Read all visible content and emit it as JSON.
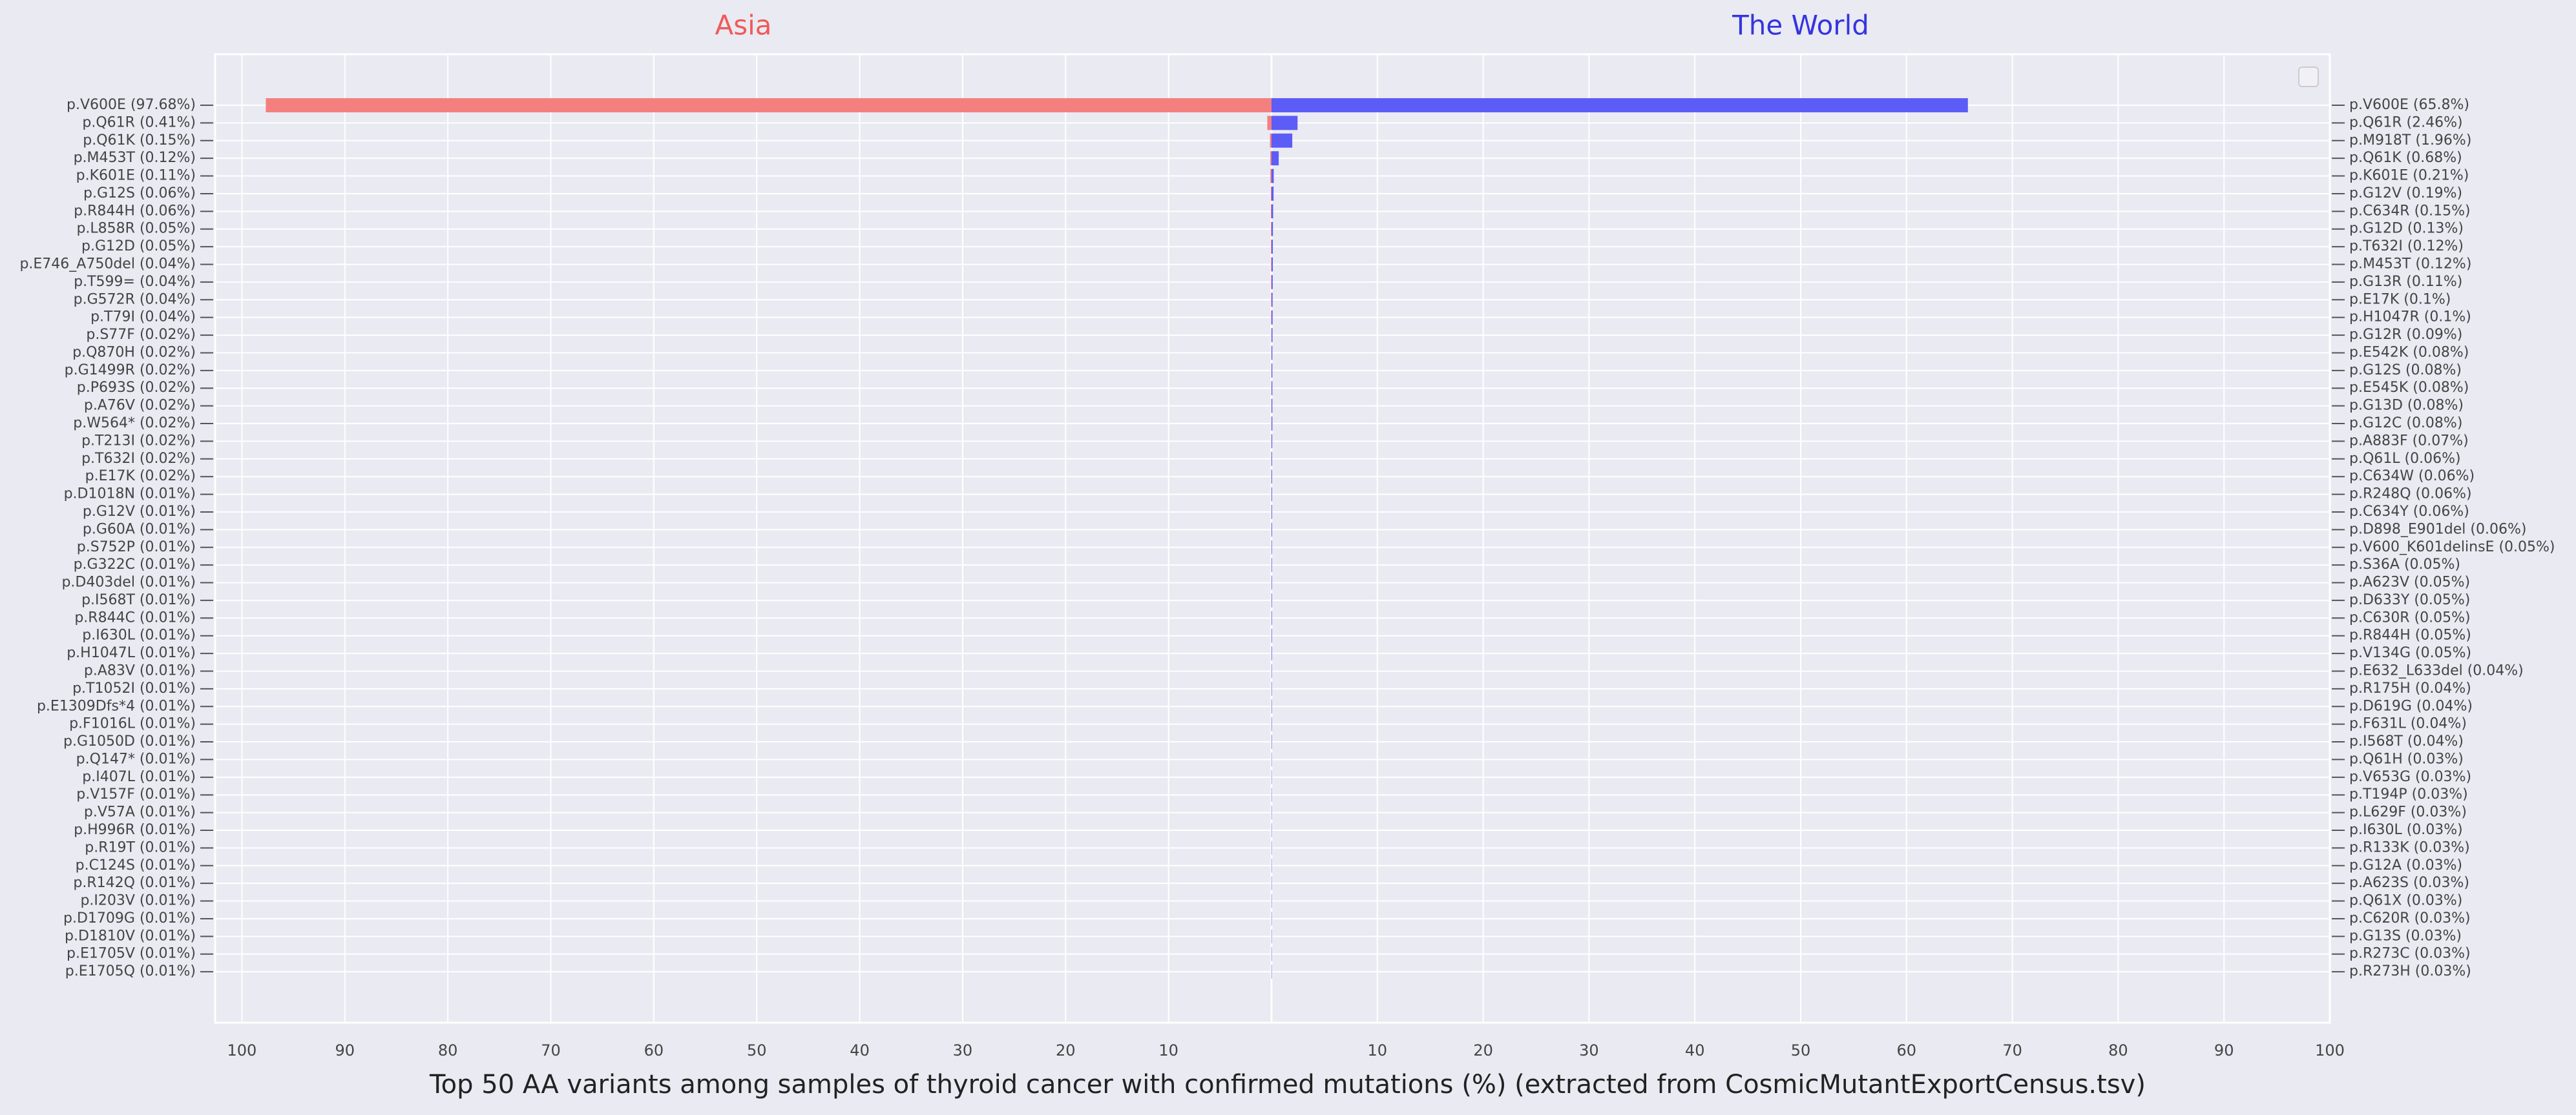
{
  "chart_data": {
    "type": "butterfly",
    "title": "Top 50 AA variants among samples of thyroid cancer with confirmed mutations (%) (extracted from CosmicMutantExportCensus.tsv)",
    "grid": true,
    "series": [
      {
        "name": "Asia",
        "color": "#f47f7f",
        "title_color": "#f05a5a",
        "side": "left",
        "xlim": [
          0,
          102.6
        ],
        "xticks": [
          10,
          20,
          30,
          40,
          50,
          60,
          70,
          80,
          90,
          100
        ],
        "categories": [
          "p.V600E (97.68%)",
          "p.Q61R (0.41%)",
          "p.Q61K (0.15%)",
          "p.M453T (0.12%)",
          "p.K601E (0.11%)",
          "p.G12S (0.06%)",
          "p.R844H (0.06%)",
          "p.L858R (0.05%)",
          "p.G12D (0.05%)",
          "p.E746_A750del (0.04%)",
          "p.T599= (0.04%)",
          "p.G572R (0.04%)",
          "p.T79I (0.04%)",
          "p.S77F (0.02%)",
          "p.Q870H (0.02%)",
          "p.G1499R (0.02%)",
          "p.P693S (0.02%)",
          "p.A76V (0.02%)",
          "p.W564* (0.02%)",
          "p.T213I (0.02%)",
          "p.T632I (0.02%)",
          "p.E17K (0.02%)",
          "p.D1018N (0.01%)",
          "p.G12V (0.01%)",
          "p.G60A (0.01%)",
          "p.S752P (0.01%)",
          "p.G322C (0.01%)",
          "p.D403del (0.01%)",
          "p.I568T (0.01%)",
          "p.R844C (0.01%)",
          "p.I630L (0.01%)",
          "p.H1047L (0.01%)",
          "p.A83V (0.01%)",
          "p.T1052I (0.01%)",
          "p.E1309Dfs*4 (0.01%)",
          "p.F1016L (0.01%)",
          "p.G1050D (0.01%)",
          "p.Q147* (0.01%)",
          "p.I407L (0.01%)",
          "p.V157F (0.01%)",
          "p.V57A (0.01%)",
          "p.H996R (0.01%)",
          "p.R19T (0.01%)",
          "p.C124S (0.01%)",
          "p.R142Q (0.01%)",
          "p.I203V (0.01%)",
          "p.D1709G (0.01%)",
          "p.D1810V (0.01%)",
          "p.E1705V (0.01%)",
          "p.E1705Q (0.01%)"
        ],
        "values": [
          97.68,
          0.41,
          0.15,
          0.12,
          0.11,
          0.06,
          0.06,
          0.05,
          0.05,
          0.04,
          0.04,
          0.04,
          0.04,
          0.02,
          0.02,
          0.02,
          0.02,
          0.02,
          0.02,
          0.02,
          0.02,
          0.02,
          0.01,
          0.01,
          0.01,
          0.01,
          0.01,
          0.01,
          0.01,
          0.01,
          0.01,
          0.01,
          0.01,
          0.01,
          0.01,
          0.01,
          0.01,
          0.01,
          0.01,
          0.01,
          0.01,
          0.01,
          0.01,
          0.01,
          0.01,
          0.01,
          0.01,
          0.01,
          0.01,
          0.01
        ]
      },
      {
        "name": "The World",
        "color": "#5c5cf7",
        "title_color": "#3434e0",
        "side": "right",
        "xlim": [
          0,
          100
        ],
        "xticks": [
          10,
          20,
          30,
          40,
          50,
          60,
          70,
          80,
          90,
          100
        ],
        "categories": [
          "p.V600E (65.8%)",
          "p.Q61R (2.46%)",
          "p.M918T (1.96%)",
          "p.Q61K (0.68%)",
          "p.K601E (0.21%)",
          "p.G12V (0.19%)",
          "p.C634R (0.15%)",
          "p.G12D (0.13%)",
          "p.T632I (0.12%)",
          "p.M453T (0.12%)",
          "p.G13R (0.11%)",
          "p.E17K (0.1%)",
          "p.H1047R (0.1%)",
          "p.G12R (0.09%)",
          "p.E542K (0.08%)",
          "p.G12S (0.08%)",
          "p.E545K (0.08%)",
          "p.G13D (0.08%)",
          "p.G12C (0.08%)",
          "p.A883F (0.07%)",
          "p.Q61L (0.06%)",
          "p.C634W (0.06%)",
          "p.R248Q (0.06%)",
          "p.C634Y (0.06%)",
          "p.D898_E901del (0.06%)",
          "p.V600_K601delinsE (0.05%)",
          "p.S36A (0.05%)",
          "p.A623V (0.05%)",
          "p.D633Y (0.05%)",
          "p.C630R (0.05%)",
          "p.R844H (0.05%)",
          "p.V134G (0.05%)",
          "p.E632_L633del (0.04%)",
          "p.R175H (0.04%)",
          "p.D619G (0.04%)",
          "p.F631L (0.04%)",
          "p.I568T (0.04%)",
          "p.Q61H (0.03%)",
          "p.V653G (0.03%)",
          "p.T194P (0.03%)",
          "p.L629F (0.03%)",
          "p.I630L (0.03%)",
          "p.R133K (0.03%)",
          "p.G12A (0.03%)",
          "p.A623S (0.03%)",
          "p.Q61X (0.03%)",
          "p.C620R (0.03%)",
          "p.G13S (0.03%)",
          "p.R273C (0.03%)",
          "p.R273H (0.03%)"
        ],
        "values": [
          65.8,
          2.46,
          1.96,
          0.68,
          0.21,
          0.19,
          0.15,
          0.13,
          0.12,
          0.12,
          0.11,
          0.1,
          0.1,
          0.09,
          0.08,
          0.08,
          0.08,
          0.08,
          0.08,
          0.07,
          0.06,
          0.06,
          0.06,
          0.06,
          0.06,
          0.05,
          0.05,
          0.05,
          0.05,
          0.05,
          0.05,
          0.05,
          0.04,
          0.04,
          0.04,
          0.04,
          0.04,
          0.03,
          0.03,
          0.03,
          0.03,
          0.03,
          0.03,
          0.03,
          0.03,
          0.03,
          0.03,
          0.03,
          0.03,
          0.03
        ]
      }
    ]
  }
}
